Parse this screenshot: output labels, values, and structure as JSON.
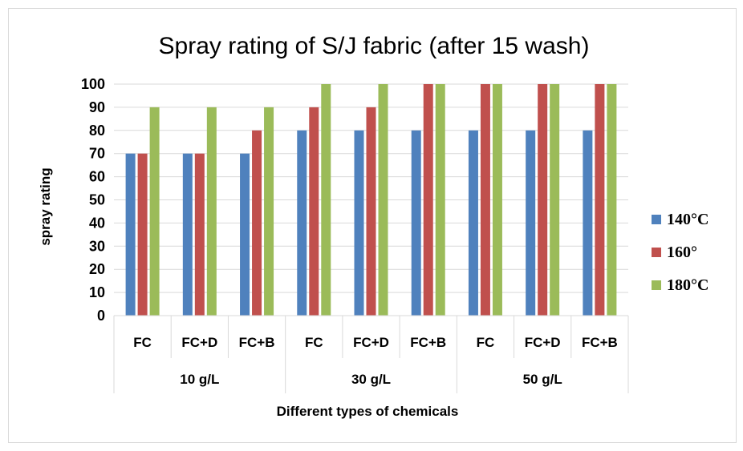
{
  "chart_data": {
    "type": "bar",
    "title": "Spray rating of S/J fabric (after 15 wash)",
    "xlabel": "Different types of chemicals",
    "ylabel": "spray rating",
    "ylim": [
      0,
      100
    ],
    "yticks": [
      0,
      10,
      20,
      30,
      40,
      50,
      60,
      70,
      80,
      90,
      100
    ],
    "grid": true,
    "legend_position": "right",
    "groups": [
      {
        "label": "10 g/L",
        "categories": [
          "FC",
          "FC+D",
          "FC+B"
        ]
      },
      {
        "label": "30 g/L",
        "categories": [
          "FC",
          "FC+D",
          "FC+B"
        ]
      },
      {
        "label": "50 g/L",
        "categories": [
          "FC",
          "FC+D",
          "FC+B"
        ]
      }
    ],
    "categories": [
      "FC",
      "FC+D",
      "FC+B",
      "FC",
      "FC+D",
      "FC+B",
      "FC",
      "FC+D",
      "FC+B"
    ],
    "series": [
      {
        "name": "140°C",
        "color": "#4f81bd",
        "values": [
          70,
          70,
          70,
          80,
          80,
          80,
          80,
          80,
          80
        ]
      },
      {
        "name": "160°",
        "color": "#c0504d",
        "values": [
          70,
          70,
          80,
          90,
          90,
          100,
          100,
          100,
          100
        ]
      },
      {
        "name": "180°C",
        "color": "#9bbb59",
        "values": [
          90,
          90,
          90,
          100,
          100,
          100,
          100,
          100,
          100
        ]
      }
    ]
  }
}
